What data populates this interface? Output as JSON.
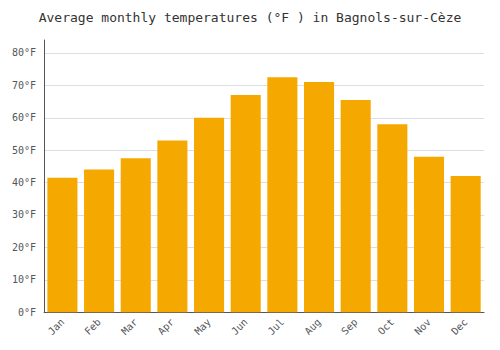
{
  "chart_data": {
    "type": "bar",
    "title": "Average monthly temperatures (°F ) in Bagnols-sur-Cèze",
    "categories": [
      "Jan",
      "Feb",
      "Mar",
      "Apr",
      "May",
      "Jun",
      "Jul",
      "Aug",
      "Sep",
      "Oct",
      "Nov",
      "Dec"
    ],
    "values": [
      41.5,
      44.0,
      47.5,
      53.0,
      60.0,
      67.0,
      72.5,
      71.0,
      65.5,
      58.0,
      48.0,
      42.0
    ],
    "color": "#F5A800",
    "ylim": [
      0,
      84
    ],
    "yticks": [
      {
        "value": 0,
        "label": "0°F"
      },
      {
        "value": 10,
        "label": "10°F"
      },
      {
        "value": 20,
        "label": "20°F"
      },
      {
        "value": 30,
        "label": "30°F"
      },
      {
        "value": 40,
        "label": "40°F"
      },
      {
        "value": 50,
        "label": "50°F"
      },
      {
        "value": 60,
        "label": "60°F"
      },
      {
        "value": 70,
        "label": "70°F"
      },
      {
        "value": 80,
        "label": "80°F"
      }
    ],
    "grid": true
  }
}
